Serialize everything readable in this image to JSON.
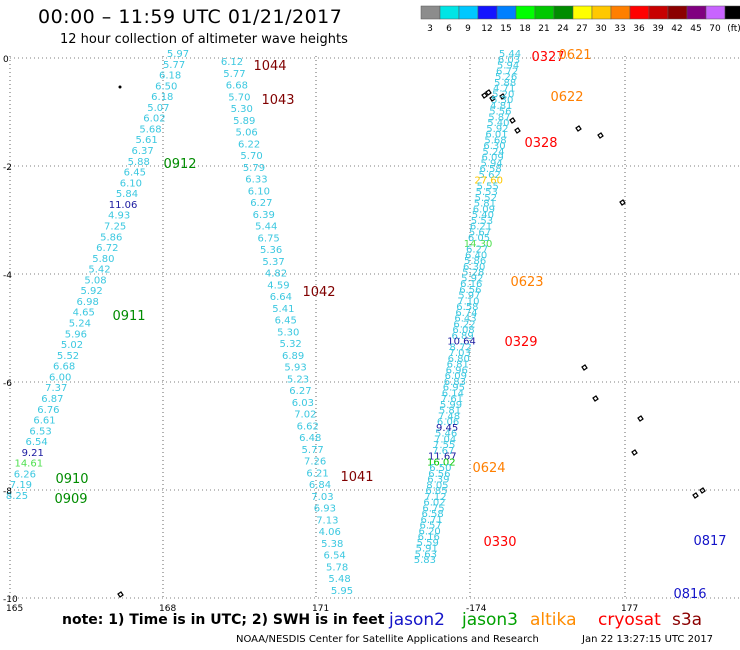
{
  "header": {
    "title": "00:00 – 11:59 UTC 01/21/2017",
    "subtitle": "12 hour collection of altimeter wave heights"
  },
  "colorbar": {
    "colors": [
      "#8c8c8c",
      "#00e5e5",
      "#00c8ff",
      "#1414ff",
      "#0080ff",
      "#00ff00",
      "#00c800",
      "#008c00",
      "#ffff00",
      "#ffc800",
      "#ff7f00",
      "#ff0000",
      "#c80000",
      "#8b0000",
      "#800080",
      "#c864ff",
      "#000000"
    ],
    "labels": [
      "3",
      "6",
      "9",
      "12",
      "15",
      "18",
      "21",
      "24",
      "27",
      "30",
      "33",
      "36",
      "39",
      "42",
      "45",
      "70",
      "(ft)"
    ]
  },
  "axes": {
    "lat_labels": [
      "0",
      "-2",
      "-4",
      "-6",
      "-8",
      "-10"
    ],
    "lon_labels": [
      "165",
      "168",
      "171",
      "-174",
      "177"
    ]
  },
  "map_points": [
    {
      "t": "5.97",
      "c": "#3cc8e0"
    },
    {
      "t": "5.77",
      "c": "#3cc8e0"
    },
    {
      "t": "6.18",
      "c": "#3cc8e0"
    },
    {
      "t": "6.50",
      "c": "#3cc8e0"
    },
    {
      "t": "6.18",
      "c": "#3cc8e0"
    },
    {
      "t": "5.07",
      "c": "#3cc8e0"
    },
    {
      "t": "6.02",
      "c": "#3cc8e0"
    },
    {
      "t": "5.68",
      "c": "#3cc8e0"
    },
    {
      "t": "5.61",
      "c": "#3cc8e0"
    },
    {
      "t": "6.37",
      "c": "#3cc8e0"
    },
    {
      "t": "5.88",
      "c": "#3cc8e0"
    },
    {
      "t": "6.45",
      "c": "#3cc8e0"
    },
    {
      "t": "6.10",
      "c": "#3cc8e0"
    },
    {
      "t": "5.84",
      "c": "#3cc8e0"
    },
    {
      "t": "11.06",
      "c": "#1a1aa0"
    },
    {
      "t": "4.93",
      "c": "#3cc8e0"
    },
    {
      "t": "7.25",
      "c": "#3cc8e0"
    },
    {
      "t": "5.86",
      "c": "#3cc8e0"
    },
    {
      "t": "6.72",
      "c": "#3cc8e0"
    },
    {
      "t": "5.80",
      "c": "#3cc8e0"
    },
    {
      "t": "5.42",
      "c": "#3cc8e0"
    },
    {
      "t": "5.08",
      "c": "#3cc8e0"
    },
    {
      "t": "5.92",
      "c": "#3cc8e0"
    },
    {
      "t": "6.98",
      "c": "#3cc8e0"
    },
    {
      "t": "4.65",
      "c": "#3cc8e0"
    },
    {
      "t": "5.24",
      "c": "#3cc8e0"
    },
    {
      "t": "5.96",
      "c": "#3cc8e0"
    },
    {
      "t": "5.02",
      "c": "#3cc8e0"
    },
    {
      "t": "5.52",
      "c": "#3cc8e0"
    },
    {
      "t": "6.68",
      "c": "#3cc8e0"
    },
    {
      "t": "6.00",
      "c": "#3cc8e0"
    },
    {
      "t": "7.37",
      "c": "#3cc8e0"
    },
    {
      "t": "6.87",
      "c": "#3cc8e0"
    },
    {
      "t": "6.76",
      "c": "#3cc8e0"
    },
    {
      "t": "6.61",
      "c": "#3cc8e0"
    },
    {
      "t": "6.53",
      "c": "#3cc8e0"
    },
    {
      "t": "6.54",
      "c": "#3cc8e0"
    },
    {
      "t": "9.21",
      "c": "#1a1aa0"
    },
    {
      "t": "14.61",
      "c": "#50e050"
    },
    {
      "t": "6.26",
      "c": "#3cc8e0"
    },
    {
      "t": "7.19",
      "c": "#3cc8e0"
    },
    {
      "t": "8.25",
      "c": "#3cc8e0"
    },
    {
      "t": "6.12",
      "c": "#3cc8e0"
    },
    {
      "t": "5.77",
      "c": "#3cc8e0"
    },
    {
      "t": "6.68",
      "c": "#3cc8e0"
    },
    {
      "t": "5.70",
      "c": "#3cc8e0"
    },
    {
      "t": "5.30",
      "c": "#3cc8e0"
    },
    {
      "t": "5.89",
      "c": "#3cc8e0"
    },
    {
      "t": "5.06",
      "c": "#3cc8e0"
    },
    {
      "t": "6.22",
      "c": "#3cc8e0"
    },
    {
      "t": "5.70",
      "c": "#3cc8e0"
    },
    {
      "t": "5.79",
      "c": "#3cc8e0"
    },
    {
      "t": "6.33",
      "c": "#3cc8e0"
    },
    {
      "t": "6.10",
      "c": "#3cc8e0"
    },
    {
      "t": "6.27",
      "c": "#3cc8e0"
    },
    {
      "t": "6.39",
      "c": "#3cc8e0"
    },
    {
      "t": "5.44",
      "c": "#3cc8e0"
    },
    {
      "t": "6.75",
      "c": "#3cc8e0"
    },
    {
      "t": "5.36",
      "c": "#3cc8e0"
    },
    {
      "t": "5.37",
      "c": "#3cc8e0"
    },
    {
      "t": "4.82",
      "c": "#3cc8e0"
    },
    {
      "t": "4.59",
      "c": "#3cc8e0"
    },
    {
      "t": "6.64",
      "c": "#3cc8e0"
    },
    {
      "t": "5.41",
      "c": "#3cc8e0"
    },
    {
      "t": "6.45",
      "c": "#3cc8e0"
    },
    {
      "t": "5.30",
      "c": "#3cc8e0"
    },
    {
      "t": "5.32",
      "c": "#3cc8e0"
    },
    {
      "t": "6.89",
      "c": "#3cc8e0"
    },
    {
      "t": "5.93",
      "c": "#3cc8e0"
    },
    {
      "t": "5.23",
      "c": "#3cc8e0"
    },
    {
      "t": "6.27",
      "c": "#3cc8e0"
    },
    {
      "t": "6.03",
      "c": "#3cc8e0"
    },
    {
      "t": "7.02",
      "c": "#3cc8e0"
    },
    {
      "t": "6.62",
      "c": "#3cc8e0"
    },
    {
      "t": "6.48",
      "c": "#3cc8e0"
    },
    {
      "t": "5.77",
      "c": "#3cc8e0"
    },
    {
      "t": "7.26",
      "c": "#3cc8e0"
    },
    {
      "t": "6.21",
      "c": "#3cc8e0"
    },
    {
      "t": "6.84",
      "c": "#3cc8e0"
    },
    {
      "t": "7.03",
      "c": "#3cc8e0"
    },
    {
      "t": "6.93",
      "c": "#3cc8e0"
    },
    {
      "t": "7.13",
      "c": "#3cc8e0"
    },
    {
      "t": "4.06",
      "c": "#3cc8e0"
    },
    {
      "t": "5.38",
      "c": "#3cc8e0"
    },
    {
      "t": "6.54",
      "c": "#3cc8e0"
    },
    {
      "t": "5.78",
      "c": "#3cc8e0"
    },
    {
      "t": "5.48",
      "c": "#3cc8e0"
    },
    {
      "t": "5.95",
      "c": "#3cc8e0"
    },
    {
      "t": "5.44",
      "c": "#3cc8e0"
    },
    {
      "t": "6.03",
      "c": "#3cc8e0"
    },
    {
      "t": "5.94",
      "c": "#3cc8e0"
    },
    {
      "t": "6.72",
      "c": "#3cc8e0"
    },
    {
      "t": "5.26",
      "c": "#3cc8e0"
    },
    {
      "t": "5.88",
      "c": "#3cc8e0"
    },
    {
      "t": "4.71",
      "c": "#3cc8e0"
    },
    {
      "t": "5.20",
      "c": "#3cc8e0"
    },
    {
      "t": "5.30",
      "c": "#3cc8e0"
    },
    {
      "t": "4.81",
      "c": "#3cc8e0"
    },
    {
      "t": "5.56",
      "c": "#3cc8e0"
    },
    {
      "t": "5.87",
      "c": "#3cc8e0"
    },
    {
      "t": "5.40",
      "c": "#3cc8e0"
    },
    {
      "t": "5.92",
      "c": "#3cc8e0"
    },
    {
      "t": "6.01",
      "c": "#3cc8e0"
    },
    {
      "t": "5.68",
      "c": "#3cc8e0"
    },
    {
      "t": "6.30",
      "c": "#3cc8e0"
    },
    {
      "t": "5.24",
      "c": "#3cc8e0"
    },
    {
      "t": "6.09",
      "c": "#3cc8e0"
    },
    {
      "t": "5.94",
      "c": "#3cc8e0"
    },
    {
      "t": "6.58",
      "c": "#3cc8e0"
    },
    {
      "t": "5.62",
      "c": "#3cc8e0"
    },
    {
      "t": "27.60",
      "c": "#ffc800"
    },
    {
      "t": "5.55",
      "c": "#3cc8e0"
    },
    {
      "t": "5.53",
      "c": "#3cc8e0"
    },
    {
      "t": "5.52",
      "c": "#3cc8e0"
    },
    {
      "t": "5.81",
      "c": "#3cc8e0"
    },
    {
      "t": "6.09",
      "c": "#3cc8e0"
    },
    {
      "t": "5.40",
      "c": "#3cc8e0"
    },
    {
      "t": "5.53",
      "c": "#3cc8e0"
    },
    {
      "t": "6.21",
      "c": "#3cc8e0"
    },
    {
      "t": "5.67",
      "c": "#3cc8e0"
    },
    {
      "t": "6.05",
      "c": "#3cc8e0"
    },
    {
      "t": "14.30",
      "c": "#50e050"
    },
    {
      "t": "6.27",
      "c": "#3cc8e0"
    },
    {
      "t": "6.40",
      "c": "#3cc8e0"
    },
    {
      "t": "5.86",
      "c": "#3cc8e0"
    },
    {
      "t": "6.30",
      "c": "#3cc8e0"
    },
    {
      "t": "5.28",
      "c": "#3cc8e0"
    },
    {
      "t": "5.92",
      "c": "#3cc8e0"
    },
    {
      "t": "6.16",
      "c": "#3cc8e0"
    },
    {
      "t": "6.56",
      "c": "#3cc8e0"
    },
    {
      "t": "5.97",
      "c": "#3cc8e0"
    },
    {
      "t": "7.10",
      "c": "#3cc8e0"
    },
    {
      "t": "6.58",
      "c": "#3cc8e0"
    },
    {
      "t": "6.74",
      "c": "#3cc8e0"
    },
    {
      "t": "6.43",
      "c": "#3cc8e0"
    },
    {
      "t": "6.22",
      "c": "#3cc8e0"
    },
    {
      "t": "6.08",
      "c": "#3cc8e0"
    },
    {
      "t": "6.89",
      "c": "#3cc8e0"
    },
    {
      "t": "10.64",
      "c": "#1a1aa0"
    },
    {
      "t": "8.72",
      "c": "#3cc8e0"
    },
    {
      "t": "7.03",
      "c": "#3cc8e0"
    },
    {
      "t": "6.80",
      "c": "#3cc8e0"
    },
    {
      "t": "6.81",
      "c": "#3cc8e0"
    },
    {
      "t": "6.96",
      "c": "#3cc8e0"
    },
    {
      "t": "6.09",
      "c": "#3cc8e0"
    },
    {
      "t": "6.83",
      "c": "#3cc8e0"
    },
    {
      "t": "6.95",
      "c": "#3cc8e0"
    },
    {
      "t": "6.14",
      "c": "#3cc8e0"
    },
    {
      "t": "7.61",
      "c": "#3cc8e0"
    },
    {
      "t": "5.99",
      "c": "#3cc8e0"
    },
    {
      "t": "5.81",
      "c": "#3cc8e0"
    },
    {
      "t": "7.48",
      "c": "#3cc8e0"
    },
    {
      "t": "6.06",
      "c": "#3cc8e0"
    },
    {
      "t": "9.45",
      "c": "#1a1aa0"
    },
    {
      "t": "5.46",
      "c": "#3cc8e0"
    },
    {
      "t": "7.04",
      "c": "#3cc8e0"
    },
    {
      "t": "7.55",
      "c": "#3cc8e0"
    },
    {
      "t": "7.67",
      "c": "#3cc8e0"
    },
    {
      "t": "11.67",
      "c": "#1a1aa0"
    },
    {
      "t": "16.02",
      "c": "#00c800"
    },
    {
      "t": "6.50",
      "c": "#3cc8e0"
    },
    {
      "t": "6.56",
      "c": "#3cc8e0"
    },
    {
      "t": "6.39",
      "c": "#3cc8e0"
    },
    {
      "t": "8.05",
      "c": "#3cc8e0"
    },
    {
      "t": "6.85",
      "c": "#3cc8e0"
    },
    {
      "t": "7.12",
      "c": "#3cc8e0"
    },
    {
      "t": "6.02",
      "c": "#3cc8e0"
    },
    {
      "t": "6.75",
      "c": "#3cc8e0"
    },
    {
      "t": "6.58",
      "c": "#3cc8e0"
    },
    {
      "t": "6.71",
      "c": "#3cc8e0"
    },
    {
      "t": "6.57",
      "c": "#3cc8e0"
    },
    {
      "t": "6.20",
      "c": "#3cc8e0"
    },
    {
      "t": "6.16",
      "c": "#3cc8e0"
    },
    {
      "t": "5.59",
      "c": "#3cc8e0"
    },
    {
      "t": "5.91",
      "c": "#3cc8e0"
    },
    {
      "t": "5.63",
      "c": "#3cc8e0"
    },
    {
      "t": "5.83",
      "c": "#3cc8e0"
    }
  ],
  "time_labels": [
    {
      "t": "1044",
      "c": "#800000"
    },
    {
      "t": "1043",
      "c": "#800000"
    },
    {
      "t": "0912",
      "c": "#008c00"
    },
    {
      "t": "1042",
      "c": "#800000"
    },
    {
      "t": "0911",
      "c": "#008c00"
    },
    {
      "t": "1041",
      "c": "#800000"
    },
    {
      "t": "0910",
      "c": "#008c00"
    },
    {
      "t": "0909",
      "c": "#008c00"
    },
    {
      "t": "0327",
      "c": "#ff0000"
    },
    {
      "t": "0621",
      "c": "#ff7f00"
    },
    {
      "t": "0622",
      "c": "#ff7f00"
    },
    {
      "t": "0328",
      "c": "#ff0000"
    },
    {
      "t": "0623",
      "c": "#ff7f00"
    },
    {
      "t": "0329",
      "c": "#ff0000"
    },
    {
      "t": "0624",
      "c": "#ff7f00"
    },
    {
      "t": "0330",
      "c": "#ff0000"
    },
    {
      "t": "0817",
      "c": "#1414c8"
    },
    {
      "t": "0816",
      "c": "#1414c8"
    }
  ],
  "footer": {
    "note": "note: 1) Time is in UTC; 2) SWH is in feet",
    "legend": [
      {
        "name": "jason2",
        "color": "#1414c8"
      },
      {
        "name": "jason3",
        "color": "#00a000"
      },
      {
        "name": "altika",
        "color": "#ff8c00"
      },
      {
        "name": "cryosat",
        "color": "#ff0000"
      },
      {
        "name": "s3a",
        "color": "#8b0000"
      }
    ],
    "credit": "NOAA/NESDIS Center for Satellite Applications and Research",
    "timestamp": "Jan 22 13:27:15 UTC 2017"
  }
}
